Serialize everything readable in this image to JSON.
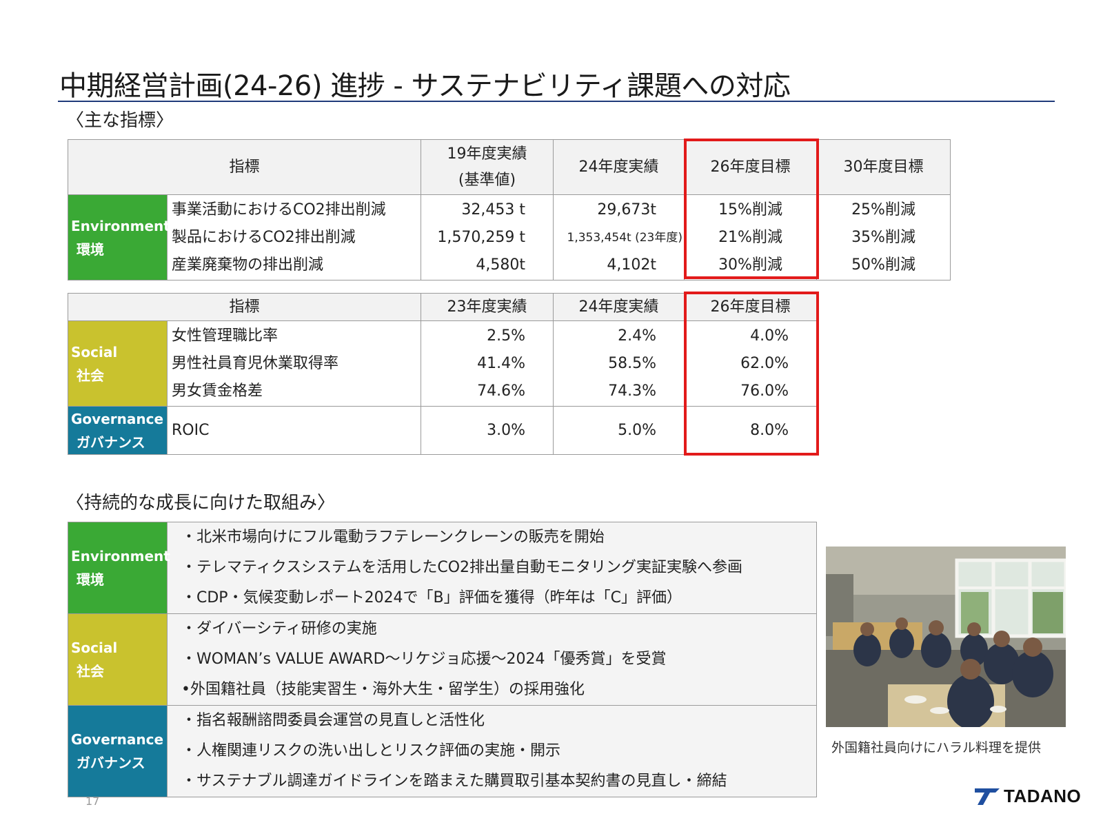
{
  "title": "中期経営計画(24-26) 進捗 - サステナビリティ課題への対応",
  "kpi_heading": "〈主な指標〉",
  "env_table": {
    "headers": [
      "指標",
      "19年度実績\n(基準値)",
      "24年度実績",
      "26年度目標",
      "30年度目標"
    ],
    "header_19_line1": "19年度実績",
    "header_19_line2": "(基準値)",
    "category_en": "Environment",
    "category_jp": "環境",
    "rows": [
      {
        "metric": "事業活動におけるCO2排出削減",
        "fy19": "32,453 t",
        "fy24": "29,673t",
        "fy26": "15%削減",
        "fy30": "25%削減"
      },
      {
        "metric": "製品におけるCO2排出削減",
        "fy19": "1,570,259 t",
        "fy24": "1,353,454t (23年度)",
        "fy26": "21%削減",
        "fy30": "35%削減"
      },
      {
        "metric": "産業廃棄物の排出削減",
        "fy19": "4,580t",
        "fy24": "4,102t",
        "fy26": "30%削減",
        "fy30": "50%削減"
      }
    ]
  },
  "sg_table": {
    "headers": [
      "指標",
      "23年度実績",
      "24年度実績",
      "26年度目標"
    ],
    "social": {
      "category_en": "Social",
      "category_jp": "社会",
      "rows": [
        {
          "metric": "女性管理職比率",
          "fy23": "2.5%",
          "fy24": "2.4%",
          "fy26": "4.0%"
        },
        {
          "metric": "男性社員育児休業取得率",
          "fy23": "41.4%",
          "fy24": "58.5%",
          "fy26": "62.0%"
        },
        {
          "metric": "男女賃金格差",
          "fy23": "74.6%",
          "fy24": "74.3%",
          "fy26": "76.0%"
        }
      ]
    },
    "governance": {
      "category_en": "Governance",
      "category_jp": "ガバナンス",
      "rows": [
        {
          "metric": "ROIC",
          "fy23": "3.0%",
          "fy24": "5.0%",
          "fy26": "8.0%"
        }
      ]
    }
  },
  "initiatives_heading": "〈持続的な成長に向けた取組み〉",
  "initiatives": [
    {
      "category_en": "Environment",
      "category_jp": "環境",
      "items": [
        "・北米市場向けにフル電動ラフテレーンクレーンの販売を開始",
        "・テレマティクスシステムを活用したCO2排出量自動モニタリング実証実験へ参画",
        "・CDP・気候変動レポート2024で「B」評価を獲得（昨年は「C」評価）"
      ]
    },
    {
      "category_en": "Social",
      "category_jp": "社会",
      "items": [
        "・ダイバーシティ研修の実施",
        "・WOMAN’s VALUE AWARD～リケジョ応援～2024「優秀賞」を受賞",
        "•外国籍社員（技能実習生・海外大生・留学生）の採用強化"
      ]
    },
    {
      "category_en": "Governance",
      "category_jp": "ガバナンス",
      "items": [
        "・指名報酬諮問委員会運営の見直しと活性化",
        "・人権関連リスクの洗い出しとリスク評価の実施・開示",
        "・サステナブル調達ガイドラインを踏まえた購買取引基本契約書の見直し・締結"
      ]
    }
  ],
  "photo_caption": "外国籍社員向けにハラル料理を提供",
  "page_number": "17",
  "logo_text": "TADANO",
  "colors": {
    "environment": "#3aa935",
    "social": "#c9c22e",
    "governance": "#157a9a",
    "highlight": "#e21a1a",
    "title_rule": "#1f3a7a"
  }
}
